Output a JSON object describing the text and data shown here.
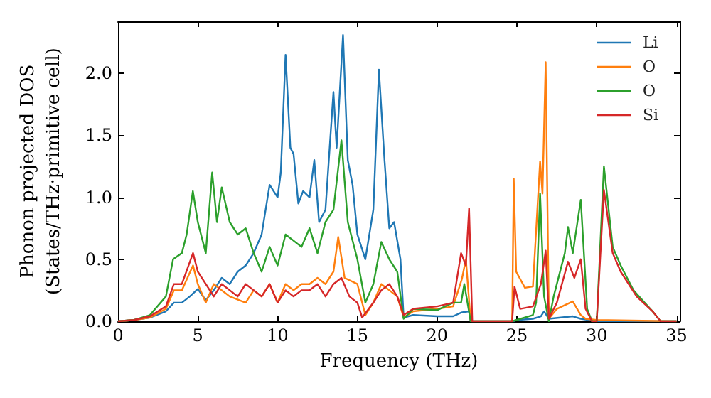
{
  "chart_data": {
    "type": "line",
    "xlabel": "Frequency (THz)",
    "ylabel": "Phonon projected DOS\n(States/THz·primitive cell)",
    "xlim": [
      0,
      35.2
    ],
    "ylim": [
      0,
      2.42
    ],
    "xticks": [
      0,
      5,
      10,
      15,
      20,
      25,
      30,
      35
    ],
    "yticks": [
      {
        "value": 0,
        "label": "0.0"
      },
      {
        "value": 0.5,
        "label": "0.5"
      },
      {
        "value": 1,
        "label": "1.0"
      },
      {
        "value": 1.5,
        "label": "1.5"
      },
      {
        "value": 2,
        "label": "2.0"
      }
    ],
    "grid": false,
    "legend": "top right",
    "marker": "none",
    "line_style": "solid",
    "series": [
      {
        "name": "Li",
        "color": "#1f77b4",
        "x": [
          0,
          1,
          2,
          3,
          3.5,
          4,
          4.5,
          5,
          5.5,
          6,
          6.5,
          7,
          7.5,
          8,
          8.5,
          9,
          9.5,
          10,
          10.2,
          10.5,
          10.8,
          11,
          11.3,
          11.6,
          12,
          12.3,
          12.6,
          13,
          13.5,
          13.7,
          14.1,
          14.4,
          14.7,
          15,
          15.5,
          16,
          16.35,
          16.7,
          17,
          17.3,
          17.7,
          17.9,
          18.5,
          20,
          21,
          21.5,
          22,
          22.1,
          24.8,
          25,
          26,
          26.5,
          26.7,
          27,
          28.5,
          29,
          30,
          35
        ],
        "values": [
          0,
          0.01,
          0.03,
          0.08,
          0.15,
          0.15,
          0.2,
          0.26,
          0.17,
          0.25,
          0.35,
          0.3,
          0.4,
          0.45,
          0.55,
          0.7,
          1.1,
          1,
          1.2,
          2.15,
          1.4,
          1.35,
          0.95,
          1.05,
          1,
          1.3,
          0.8,
          0.9,
          1.85,
          1.4,
          2.31,
          1.3,
          1.1,
          0.7,
          0.5,
          0.9,
          2.03,
          1.3,
          0.75,
          0.8,
          0.5,
          0.03,
          0.05,
          0.04,
          0.04,
          0.07,
          0.08,
          0,
          0,
          0.01,
          0.02,
          0.04,
          0.08,
          0.02,
          0.04,
          0.02,
          0,
          0
        ]
      },
      {
        "name": "O",
        "color": "#ff7f0e",
        "x": [
          0,
          1,
          2,
          3,
          3.5,
          4,
          4.7,
          5,
          5.5,
          6,
          7,
          8,
          8.5,
          9,
          9.5,
          10,
          10.5,
          11,
          11.5,
          12,
          12.5,
          13,
          13.5,
          13.8,
          14.2,
          15,
          15.5,
          16,
          16.5,
          17,
          17.5,
          17.9,
          18.5,
          20,
          21,
          21.55,
          21.8,
          22.1,
          24.7,
          24.8,
          24.95,
          25.5,
          26,
          26.45,
          26.6,
          26.8,
          27,
          27.5,
          28.5,
          29,
          29.3,
          30,
          35
        ],
        "values": [
          0,
          0.01,
          0.03,
          0.1,
          0.25,
          0.25,
          0.45,
          0.3,
          0.15,
          0.3,
          0.2,
          0.15,
          0.25,
          0.2,
          0.3,
          0.15,
          0.3,
          0.25,
          0.3,
          0.3,
          0.35,
          0.3,
          0.4,
          0.68,
          0.35,
          0.3,
          0.05,
          0.15,
          0.3,
          0.25,
          0.2,
          0.03,
          0.08,
          0.1,
          0.12,
          0.34,
          0.5,
          0,
          0,
          1.15,
          0.4,
          0.27,
          0.28,
          1.29,
          1.03,
          2.09,
          0.02,
          0.1,
          0.16,
          0.05,
          0.02,
          0.01,
          0
        ]
      },
      {
        "name": "O",
        "color": "#2ca02c",
        "x": [
          0,
          1,
          2,
          3,
          3.45,
          4,
          4.3,
          4.69,
          5,
          5.5,
          5.9,
          6.2,
          6.5,
          7,
          7.5,
          8,
          8.5,
          9,
          9.5,
          10,
          10.5,
          11,
          11.5,
          12,
          12.5,
          13,
          13.5,
          14,
          14.4,
          15,
          15.5,
          16,
          16.5,
          17,
          17.5,
          17.9,
          18.5,
          20,
          21,
          21.5,
          21.7,
          22.1,
          24.7,
          26,
          26.2,
          26.45,
          26.7,
          27,
          27.3,
          28,
          28.2,
          28.5,
          29,
          29.4,
          29.7,
          30,
          30.45,
          31,
          31.5,
          32.3,
          33,
          33.5,
          34,
          35
        ],
        "values": [
          0,
          0.01,
          0.05,
          0.2,
          0.5,
          0.55,
          0.7,
          1.05,
          0.8,
          0.55,
          1.2,
          0.8,
          1.08,
          0.8,
          0.7,
          0.75,
          0.55,
          0.4,
          0.6,
          0.45,
          0.7,
          0.65,
          0.6,
          0.75,
          0.55,
          0.8,
          0.9,
          1.46,
          0.8,
          0.5,
          0.15,
          0.3,
          0.64,
          0.5,
          0.4,
          0.02,
          0.1,
          0.09,
          0.15,
          0.15,
          0.3,
          0,
          0,
          0.05,
          0.15,
          1.03,
          0.2,
          0,
          0.2,
          0.55,
          0.76,
          0.55,
          0.98,
          0.1,
          0,
          0,
          1.25,
          0.6,
          0.45,
          0.25,
          0.15,
          0.08,
          0,
          0
        ]
      },
      {
        "name": "Si",
        "color": "#d62728",
        "x": [
          0,
          1,
          2,
          3,
          3.5,
          4,
          4.7,
          5,
          5.5,
          6,
          6.5,
          7,
          7.5,
          8,
          8.5,
          9,
          9.5,
          10,
          10.5,
          11,
          11.5,
          12,
          12.5,
          13,
          13.5,
          14,
          14.5,
          15,
          15.3,
          16,
          16.5,
          17,
          17.5,
          17.9,
          18.5,
          20,
          21,
          21.5,
          21.8,
          22,
          22.2,
          24.7,
          24.85,
          25.2,
          26,
          26.5,
          26.8,
          27,
          27.5,
          28.2,
          28.6,
          29,
          29.3,
          29.7,
          30,
          30.45,
          31,
          31.5,
          32.5,
          33.5,
          34,
          35
        ],
        "values": [
          0,
          0.01,
          0.04,
          0.12,
          0.3,
          0.3,
          0.55,
          0.4,
          0.3,
          0.2,
          0.3,
          0.25,
          0.2,
          0.3,
          0.25,
          0.2,
          0.3,
          0.15,
          0.25,
          0.2,
          0.25,
          0.25,
          0.3,
          0.2,
          0.3,
          0.35,
          0.2,
          0.15,
          0.03,
          0.15,
          0.25,
          0.3,
          0.2,
          0.05,
          0.1,
          0.12,
          0.15,
          0.55,
          0.45,
          0.91,
          0,
          0,
          0.28,
          0.1,
          0.12,
          0.3,
          0.57,
          0.02,
          0.15,
          0.48,
          0.35,
          0.5,
          0.1,
          0,
          0,
          1.06,
          0.55,
          0.4,
          0.2,
          0.08,
          0,
          0
        ]
      }
    ]
  }
}
